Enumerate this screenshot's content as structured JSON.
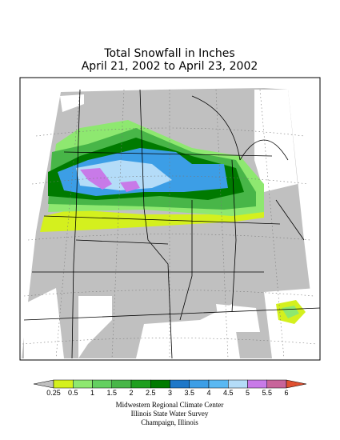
{
  "title": [
    "Total Snowfall in Inches",
    "April 21, 2002 to April 23, 2002"
  ],
  "legend": {
    "ticks": [
      0.25,
      0.5,
      1,
      1.5,
      2,
      2.5,
      3,
      3.5,
      4,
      4.5,
      5,
      5.5,
      6
    ],
    "colors": [
      "#c0c0c0",
      "#d4f01e",
      "#8ee870",
      "#64d060",
      "#48b648",
      "#1f9f1f",
      "#007a00",
      "#1f78c8",
      "#3c9ee6",
      "#5ab8f2",
      "#b4dcf8",
      "#c87ae8",
      "#c8649a",
      "#e05030"
    ]
  },
  "footer": [
    "Midwestern Regional Climate Center",
    "Illinois State Water Survey",
    "Champaign, Illinois"
  ]
}
